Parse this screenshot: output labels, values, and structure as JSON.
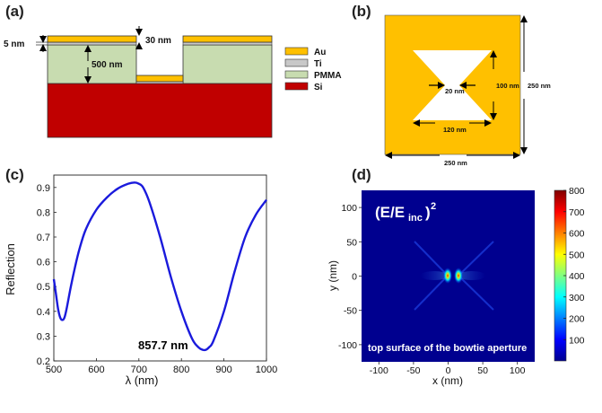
{
  "panel_labels": {
    "a": "(a)",
    "b": "(b)",
    "c": "(c)",
    "d": "(d)"
  },
  "panel_a": {
    "dims": {
      "ti": "5 nm",
      "pmma": "500 nm",
      "au": "30 nm"
    },
    "legend": [
      {
        "label": "Au",
        "color": "#ffc000"
      },
      {
        "label": "Ti",
        "color": "#c8c8c8"
      },
      {
        "label": "PMMA",
        "color": "#c8dcb0"
      },
      {
        "label": "Si",
        "color": "#c00000"
      }
    ]
  },
  "panel_b": {
    "dims": {
      "gap": "20 nm",
      "height": "100 nm",
      "width": "120 nm",
      "side_vertical": "250 nm",
      "side_horizontal": "250 nm"
    },
    "colors": {
      "film": "#ffc000",
      "aperture": "#ffffff"
    }
  },
  "chart_data": [
    {
      "type": "line",
      "title": "",
      "xlabel": "λ (nm)",
      "ylabel": "Reflection",
      "xlim": [
        500,
        1000
      ],
      "ylim": [
        0.2,
        0.95
      ],
      "x_ticks": [
        500,
        600,
        700,
        800,
        900,
        1000
      ],
      "y_ticks": [
        0.2,
        0.3,
        0.4,
        0.5,
        0.6,
        0.7,
        0.8,
        0.9
      ],
      "annotation": "857.7 nm",
      "line_color": "#1a1adc",
      "series": [
        {
          "x": [
            500,
            505,
            510,
            515,
            520,
            525,
            530,
            540,
            550,
            560,
            575,
            600,
            625,
            650,
            675,
            690,
            700,
            710,
            725,
            750,
            775,
            800,
            825,
            840,
            850,
            857.7,
            865,
            875,
            900,
            925,
            950,
            975,
            1000
          ],
          "y": [
            0.53,
            0.47,
            0.41,
            0.375,
            0.365,
            0.375,
            0.41,
            0.5,
            0.58,
            0.65,
            0.73,
            0.81,
            0.86,
            0.895,
            0.915,
            0.92,
            0.915,
            0.9,
            0.84,
            0.7,
            0.54,
            0.4,
            0.29,
            0.255,
            0.245,
            0.245,
            0.255,
            0.28,
            0.4,
            0.56,
            0.7,
            0.79,
            0.85
          ]
        }
      ]
    },
    {
      "type": "heatmap",
      "title": "(E/E_inc)^2",
      "title_parts": {
        "main": "(E/E",
        "sub": "inc",
        "close": ")",
        "sup": "2"
      },
      "subtitle": "top surface of the bowtie aperture",
      "xlabel": "x (nm)",
      "ylabel": "y (nm)",
      "xlim": [
        -125,
        125
      ],
      "ylim": [
        -125,
        125
      ],
      "x_ticks": [
        -100,
        -50,
        0,
        50,
        100
      ],
      "y_ticks": [
        100,
        50,
        0,
        -50,
        -100
      ],
      "colorbar_ticks": [
        800,
        700,
        600,
        500,
        400,
        300,
        200,
        100
      ],
      "colorbar_range": [
        0,
        800
      ],
      "hotspots": [
        {
          "x": -9,
          "y": 0,
          "value": 800
        },
        {
          "x": 9,
          "y": 0,
          "value": 800
        }
      ]
    }
  ]
}
